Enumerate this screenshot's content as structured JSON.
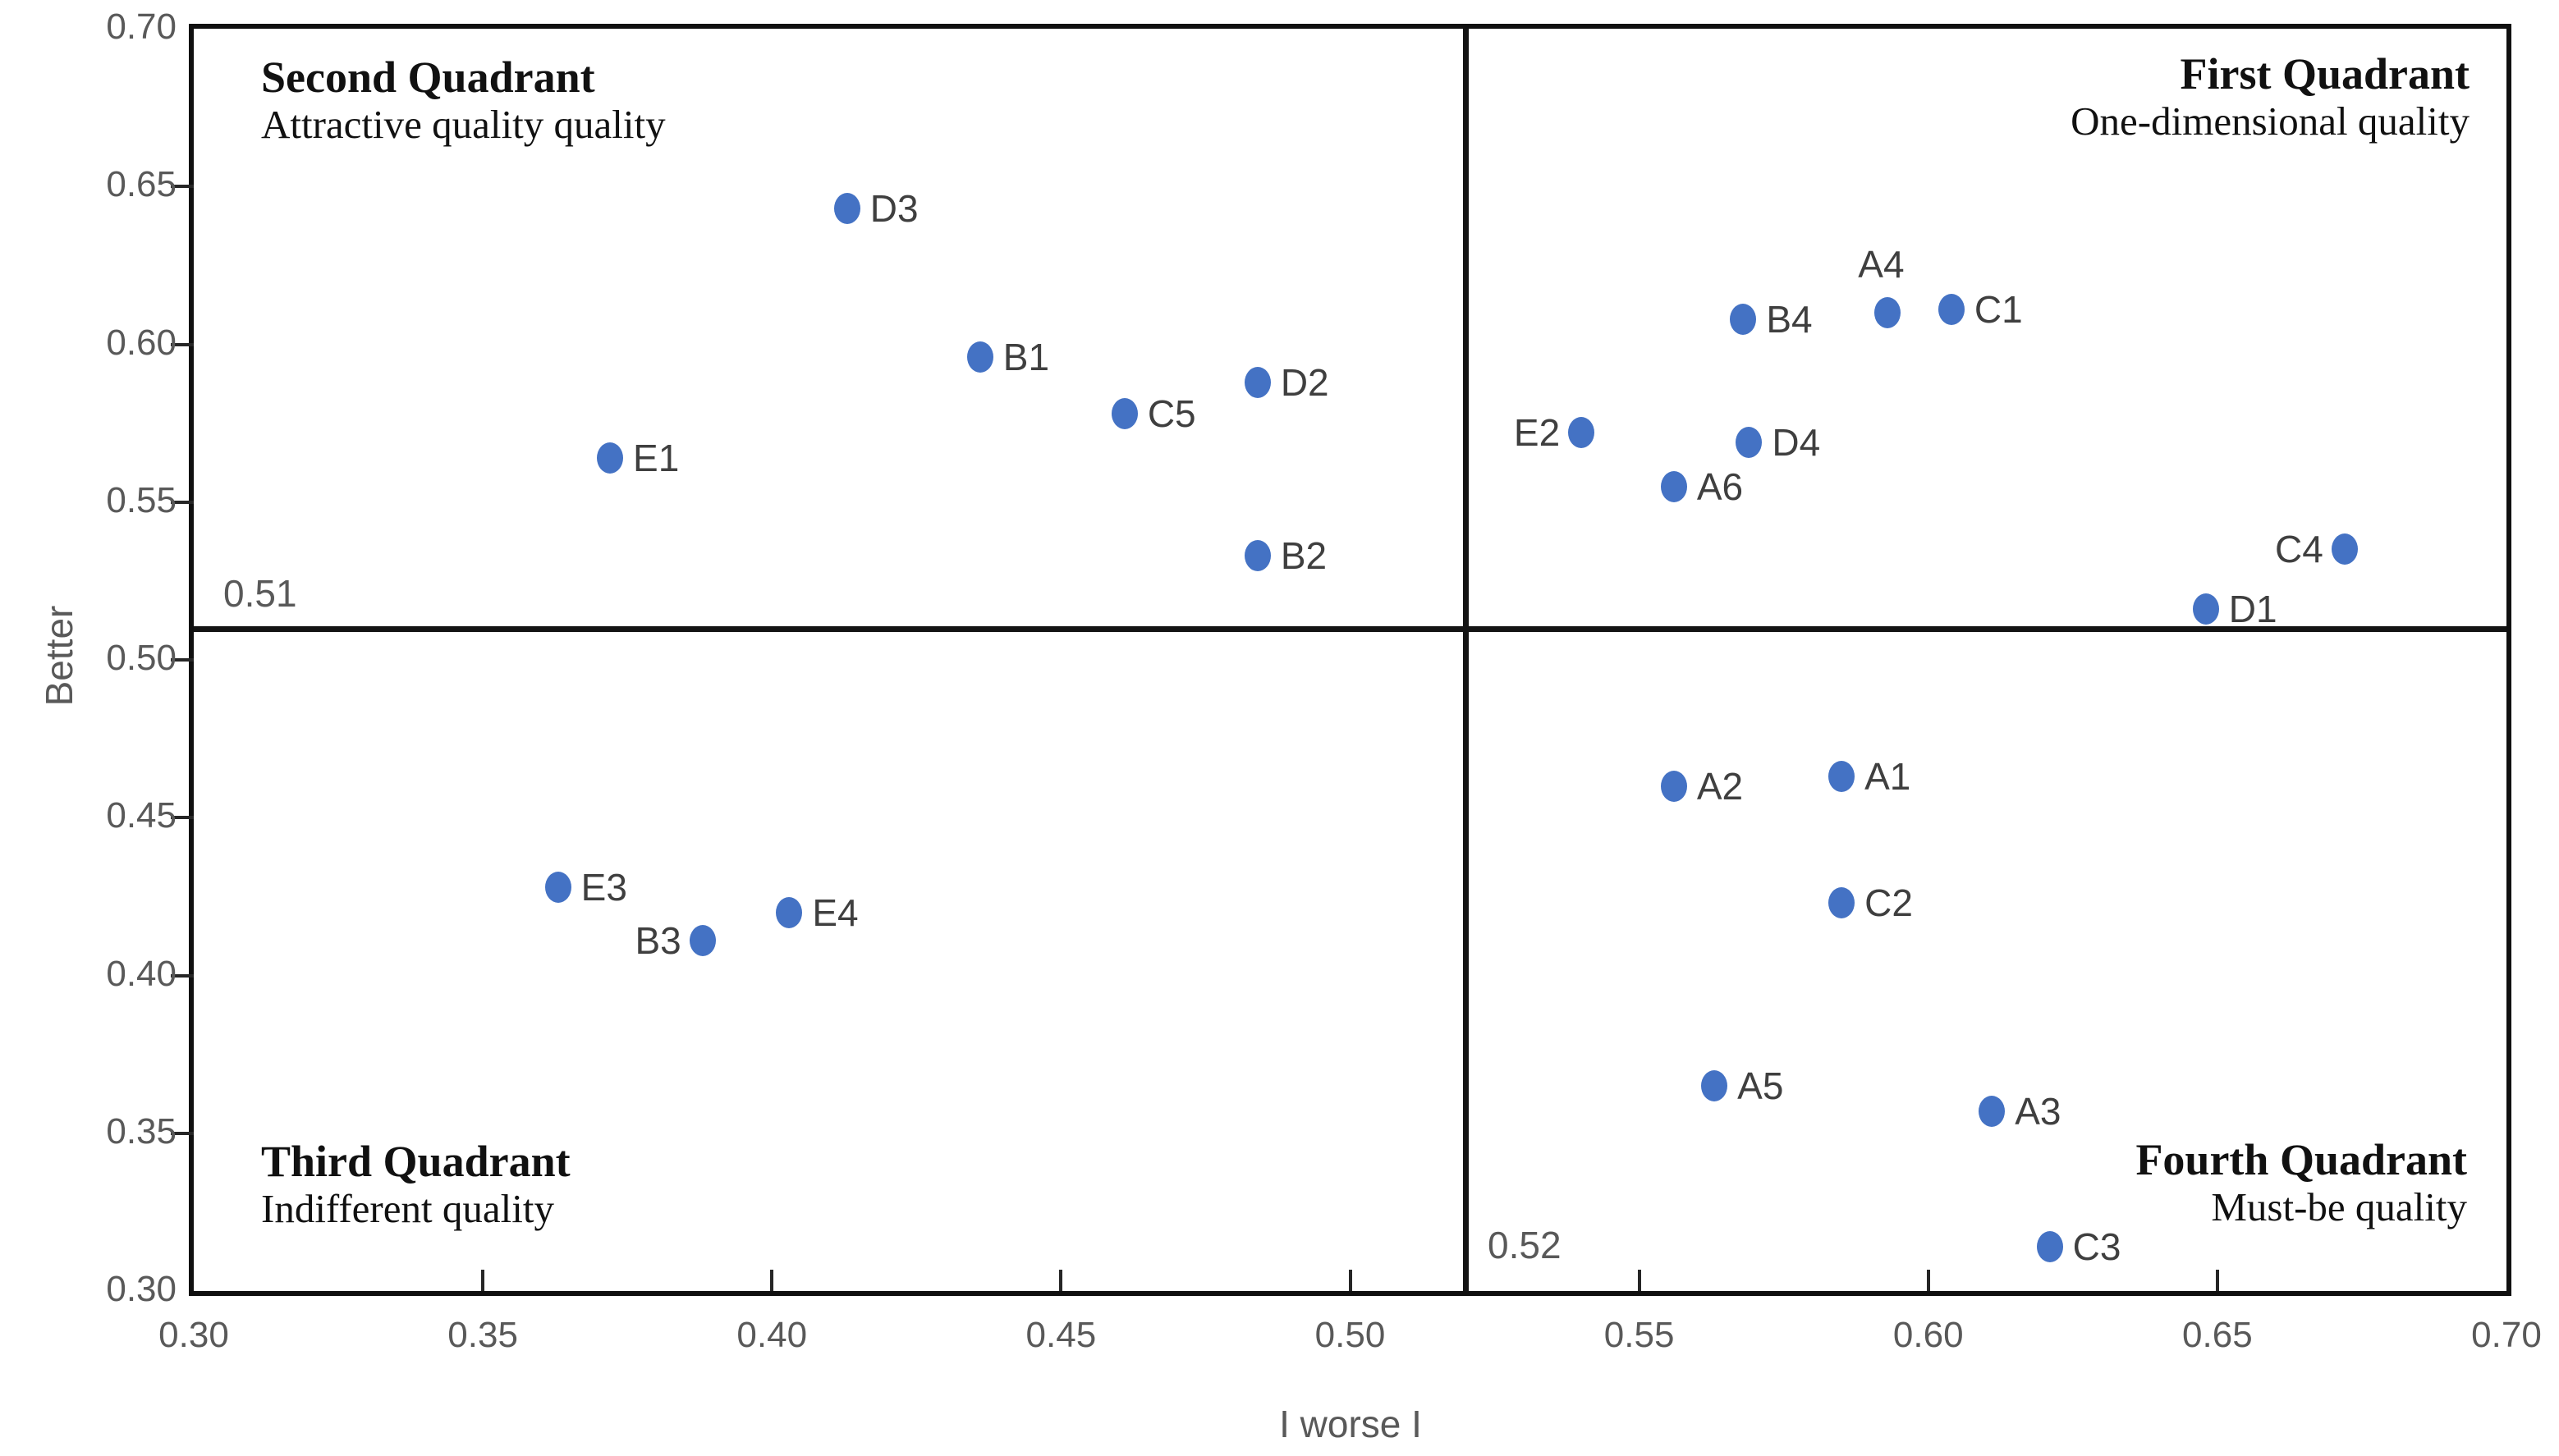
{
  "chart_data": {
    "type": "scatter",
    "title": "",
    "xlabel": "I worse I",
    "ylabel": "Better",
    "xlim": [
      0.3,
      0.7
    ],
    "ylim": [
      0.3,
      0.7
    ],
    "x_ticks": [
      0.3,
      0.35,
      0.4,
      0.45,
      0.5,
      0.55,
      0.6,
      0.65,
      0.7
    ],
    "y_ticks": [
      0.3,
      0.35,
      0.4,
      0.45,
      0.5,
      0.55,
      0.6,
      0.65,
      0.7
    ],
    "grid": false,
    "legend": false,
    "marker_color": "#4472C4",
    "label_color": "#3f3f3f",
    "axis_text_color": "#595959",
    "dividers": {
      "x": 0.52,
      "y": 0.51,
      "x_label": "0.52",
      "y_label": "0.51"
    },
    "quadrants": [
      {
        "name": "Second Quadrant",
        "description": "Attractive quality quality",
        "position": "top-left"
      },
      {
        "name": "First Quadrant",
        "description": "One-dimensional quality",
        "position": "top-right"
      },
      {
        "name": "Third Quadrant",
        "description": "Indifferent quality",
        "position": "bottom-left"
      },
      {
        "name": "Fourth Quadrant",
        "description": "Must-be quality",
        "position": "bottom-right"
      }
    ],
    "points": [
      {
        "label": "E1",
        "x": 0.372,
        "y": 0.564,
        "label_side": "right"
      },
      {
        "label": "D3",
        "x": 0.413,
        "y": 0.643,
        "label_side": "right"
      },
      {
        "label": "B1",
        "x": 0.436,
        "y": 0.596,
        "label_side": "right"
      },
      {
        "label": "C5",
        "x": 0.461,
        "y": 0.578,
        "label_side": "right"
      },
      {
        "label": "D2",
        "x": 0.484,
        "y": 0.588,
        "label_side": "right"
      },
      {
        "label": "B2",
        "x": 0.484,
        "y": 0.533,
        "label_side": "right"
      },
      {
        "label": "E2",
        "x": 0.54,
        "y": 0.572,
        "label_side": "left"
      },
      {
        "label": "A6",
        "x": 0.556,
        "y": 0.555,
        "label_side": "right"
      },
      {
        "label": "B4",
        "x": 0.568,
        "y": 0.608,
        "label_side": "right"
      },
      {
        "label": "D4",
        "x": 0.569,
        "y": 0.569,
        "label_side": "right"
      },
      {
        "label": "A4",
        "x": 0.593,
        "y": 0.61,
        "label_side": "above"
      },
      {
        "label": "C1",
        "x": 0.604,
        "y": 0.611,
        "label_side": "right"
      },
      {
        "label": "D1",
        "x": 0.648,
        "y": 0.516,
        "label_side": "right"
      },
      {
        "label": "C4",
        "x": 0.672,
        "y": 0.535,
        "label_side": "left"
      },
      {
        "label": "E3",
        "x": 0.363,
        "y": 0.428,
        "label_side": "right"
      },
      {
        "label": "B3",
        "x": 0.388,
        "y": 0.411,
        "label_side": "left"
      },
      {
        "label": "E4",
        "x": 0.403,
        "y": 0.42,
        "label_side": "right"
      },
      {
        "label": "A2",
        "x": 0.556,
        "y": 0.46,
        "label_side": "right"
      },
      {
        "label": "A1",
        "x": 0.585,
        "y": 0.463,
        "label_side": "right"
      },
      {
        "label": "C2",
        "x": 0.585,
        "y": 0.423,
        "label_side": "right"
      },
      {
        "label": "A5",
        "x": 0.563,
        "y": 0.365,
        "label_side": "right"
      },
      {
        "label": "A3",
        "x": 0.611,
        "y": 0.357,
        "label_side": "right"
      },
      {
        "label": "C3",
        "x": 0.621,
        "y": 0.314,
        "label_side": "right"
      }
    ]
  }
}
